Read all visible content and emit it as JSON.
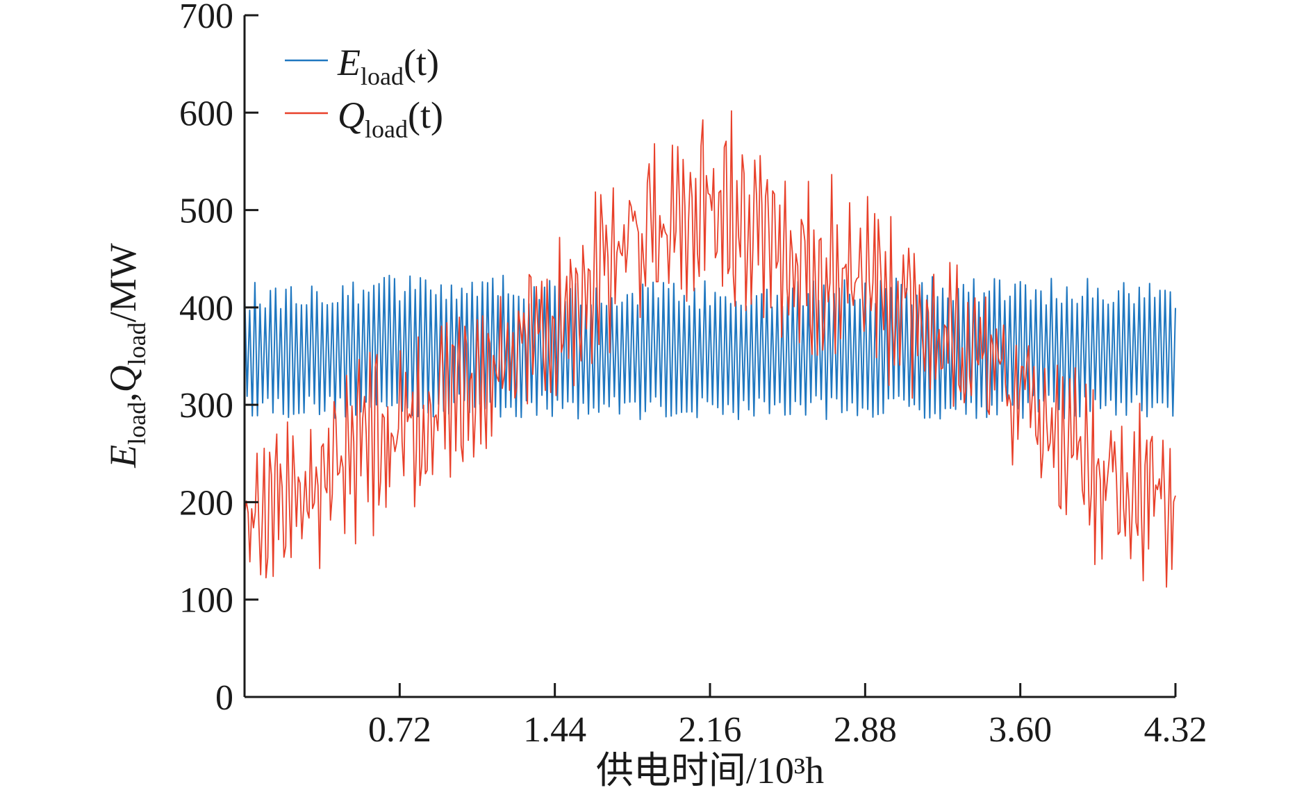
{
  "chart_data": {
    "type": "line",
    "title": "",
    "xlabel": "供电时间/10³h",
    "ylabel": {
      "E_main": "E",
      "E_sub": "load",
      "separator": ",",
      "Q_main": "Q",
      "Q_sub": "load",
      "unit": "/MW"
    },
    "xlim": [
      0,
      4.32
    ],
    "ylim": [
      0,
      700
    ],
    "x_ticks": [
      0.72,
      1.44,
      2.16,
      2.88,
      3.6,
      4.32
    ],
    "x_tick_labels": [
      "0.72",
      "1.44",
      "2.16",
      "2.88",
      "3.60",
      "4.32"
    ],
    "y_ticks": [
      0,
      100,
      200,
      300,
      400,
      500,
      600,
      700
    ],
    "y_tick_labels": [
      "0",
      "100",
      "200",
      "300",
      "400",
      "500",
      "600",
      "700"
    ],
    "grid": false,
    "legend_position": "top-left",
    "series": [
      {
        "name": "E_load(t)",
        "legend": {
          "main": "E",
          "sub": "load",
          "arg": "(t)"
        },
        "color": "#1f77c0",
        "description": "rapid oscillation between ~285 and ~430 MW",
        "x": [
          0.0,
          0.36,
          0.72,
          1.08,
          1.44,
          1.8,
          2.16,
          2.52,
          2.88,
          3.24,
          3.6,
          3.96,
          4.32
        ],
        "values_upper": [
          425,
          432,
          435,
          435,
          430,
          428,
          428,
          428,
          430,
          432,
          430,
          432,
          428
        ],
        "values_lower": [
          288,
          285,
          285,
          287,
          285,
          285,
          284,
          285,
          285,
          285,
          285,
          285,
          287
        ]
      },
      {
        "name": "Q_load(t)",
        "legend": {
          "main": "Q",
          "sub": "load",
          "arg": "(t)"
        },
        "color": "#e8402a",
        "description": "seasonal load envelope peaking near 2.16 (~620 MW)",
        "x": [
          0.0,
          0.36,
          0.72,
          1.08,
          1.44,
          1.8,
          2.16,
          2.52,
          2.88,
          3.24,
          3.6,
          3.96,
          4.32
        ],
        "values_upper": [
          260,
          330,
          370,
          410,
          470,
          570,
          620,
          560,
          530,
          460,
          390,
          320,
          290
        ],
        "values_lower": [
          110,
          130,
          180,
          240,
          300,
          360,
          420,
          360,
          330,
          290,
          230,
          130,
          110
        ]
      }
    ]
  }
}
